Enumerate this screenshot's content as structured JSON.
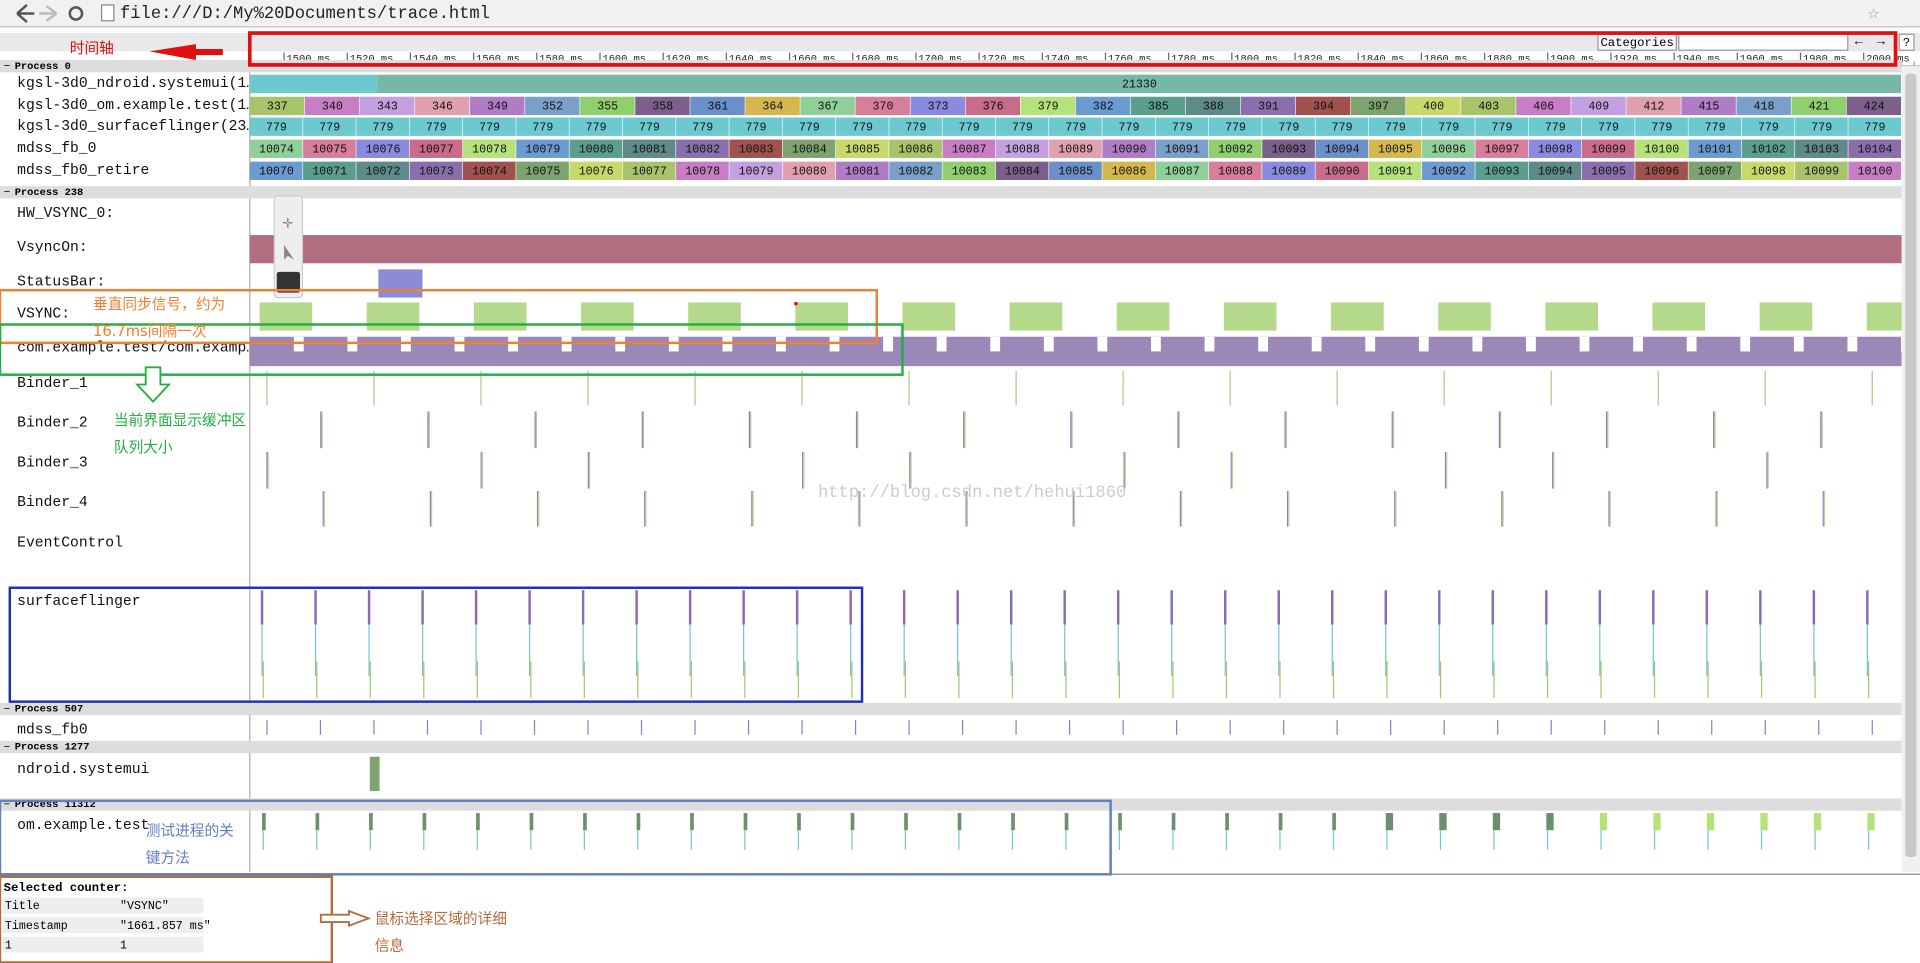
{
  "browser": {
    "url": "file:///D:/My%20Documents/trace.html"
  },
  "toolbar": {
    "categories": "Categories",
    "prev": "←",
    "next": "→",
    "help": "?"
  },
  "ruler": {
    "ticks": [
      "1500 ms",
      "1520 ms",
      "1540 ms",
      "1560 ms",
      "1580 ms",
      "1600 ms",
      "1620 ms",
      "1640 ms",
      "1660 ms",
      "1680 ms",
      "1700 ms",
      "1720 ms",
      "1740 ms",
      "1760 ms",
      "1780 ms",
      "1800 ms",
      "1820 ms",
      "1840 ms",
      "1860 ms",
      "1880 ms",
      "1900 ms",
      "1920 ms",
      "1940 ms",
      "1960 ms",
      "1980 ms",
      "2000 ms"
    ]
  },
  "processes": [
    {
      "header": "Process 0",
      "tracks": [
        {
          "label": "kgsl-3d0_ndroid.systemui(1…",
          "values": [
            21330
          ]
        },
        {
          "label": "kgsl-3d0_om.example.test(1…",
          "values": [
            337,
            340,
            343,
            346,
            349,
            352,
            355,
            358,
            361,
            364,
            367,
            370,
            373,
            376,
            379,
            382,
            385,
            388,
            391,
            394,
            397,
            400,
            403,
            406,
            409,
            412,
            415,
            418,
            421,
            424
          ]
        },
        {
          "label": "kgsl-3d0_surfaceflinger(23…",
          "values": [
            779,
            779,
            779,
            779,
            779,
            779,
            779,
            779,
            779,
            779,
            779,
            779,
            779,
            779,
            779,
            779,
            779,
            779,
            779,
            779,
            779,
            779,
            779,
            779,
            779,
            779,
            779,
            779,
            779,
            779,
            779
          ]
        },
        {
          "label": "mdss_fb_0",
          "values": [
            10074,
            10075,
            10076,
            10077,
            10078,
            10079,
            10080,
            10081,
            10082,
            10083,
            10084,
            10085,
            10086,
            10087,
            10088,
            10089,
            10090,
            10091,
            10092,
            10093,
            10094,
            10095,
            10096,
            10097,
            10098,
            10099,
            10100,
            10101,
            10102,
            10103,
            10104
          ]
        },
        {
          "label": "mdss_fb0_retire",
          "values": [
            10070,
            10071,
            10072,
            10073,
            10074,
            10075,
            10076,
            10077,
            10078,
            10079,
            10080,
            10081,
            10082,
            10083,
            10084,
            10085,
            10086,
            10087,
            10088,
            10089,
            10090,
            10091,
            10092,
            10093,
            10094,
            10095,
            10096,
            10097,
            10098,
            10099,
            10100
          ]
        }
      ]
    },
    {
      "header": "Process 238",
      "tracks": [
        {
          "label": "HW_VSYNC_0:"
        },
        {
          "label": "VsyncOn:"
        },
        {
          "label": "StatusBar:"
        },
        {
          "label": "VSYNC:"
        },
        {
          "label": "com.example.test/com.examp…"
        },
        {
          "label": "Binder_1"
        },
        {
          "label": "Binder_2"
        },
        {
          "label": "Binder_3"
        },
        {
          "label": "Binder_4"
        },
        {
          "label": "EventControl"
        },
        {
          "label": "surfaceflinger"
        }
      ]
    },
    {
      "header": "Process 507",
      "tracks": [
        {
          "label": "mdss_fb0"
        }
      ]
    },
    {
      "header": "Process 1277",
      "tracks": [
        {
          "label": "ndroid.systemui"
        }
      ]
    },
    {
      "header": "Process 11312",
      "tracks": [
        {
          "label": "om.example.test"
        }
      ]
    }
  ],
  "selection": {
    "title": "Selected counter:",
    "rows": [
      [
        "Title",
        "\"VSYNC\""
      ],
      [
        "Timestamp",
        "\"1661.857 ms\""
      ],
      [
        "1",
        "1"
      ]
    ]
  },
  "annotations": {
    "timeline": "时间轴",
    "vsync": [
      "垂直同步信号，约为",
      "16.7ms间隔一次"
    ],
    "buffer": [
      "当前界面显示缓冲区",
      "队列大小"
    ],
    "method": [
      "测试进程的关",
      "键方法"
    ],
    "detail": [
      "鼠标选择区域的详细",
      "信息"
    ],
    "watermark": "http://blog.csdn.net/hehui1860"
  }
}
